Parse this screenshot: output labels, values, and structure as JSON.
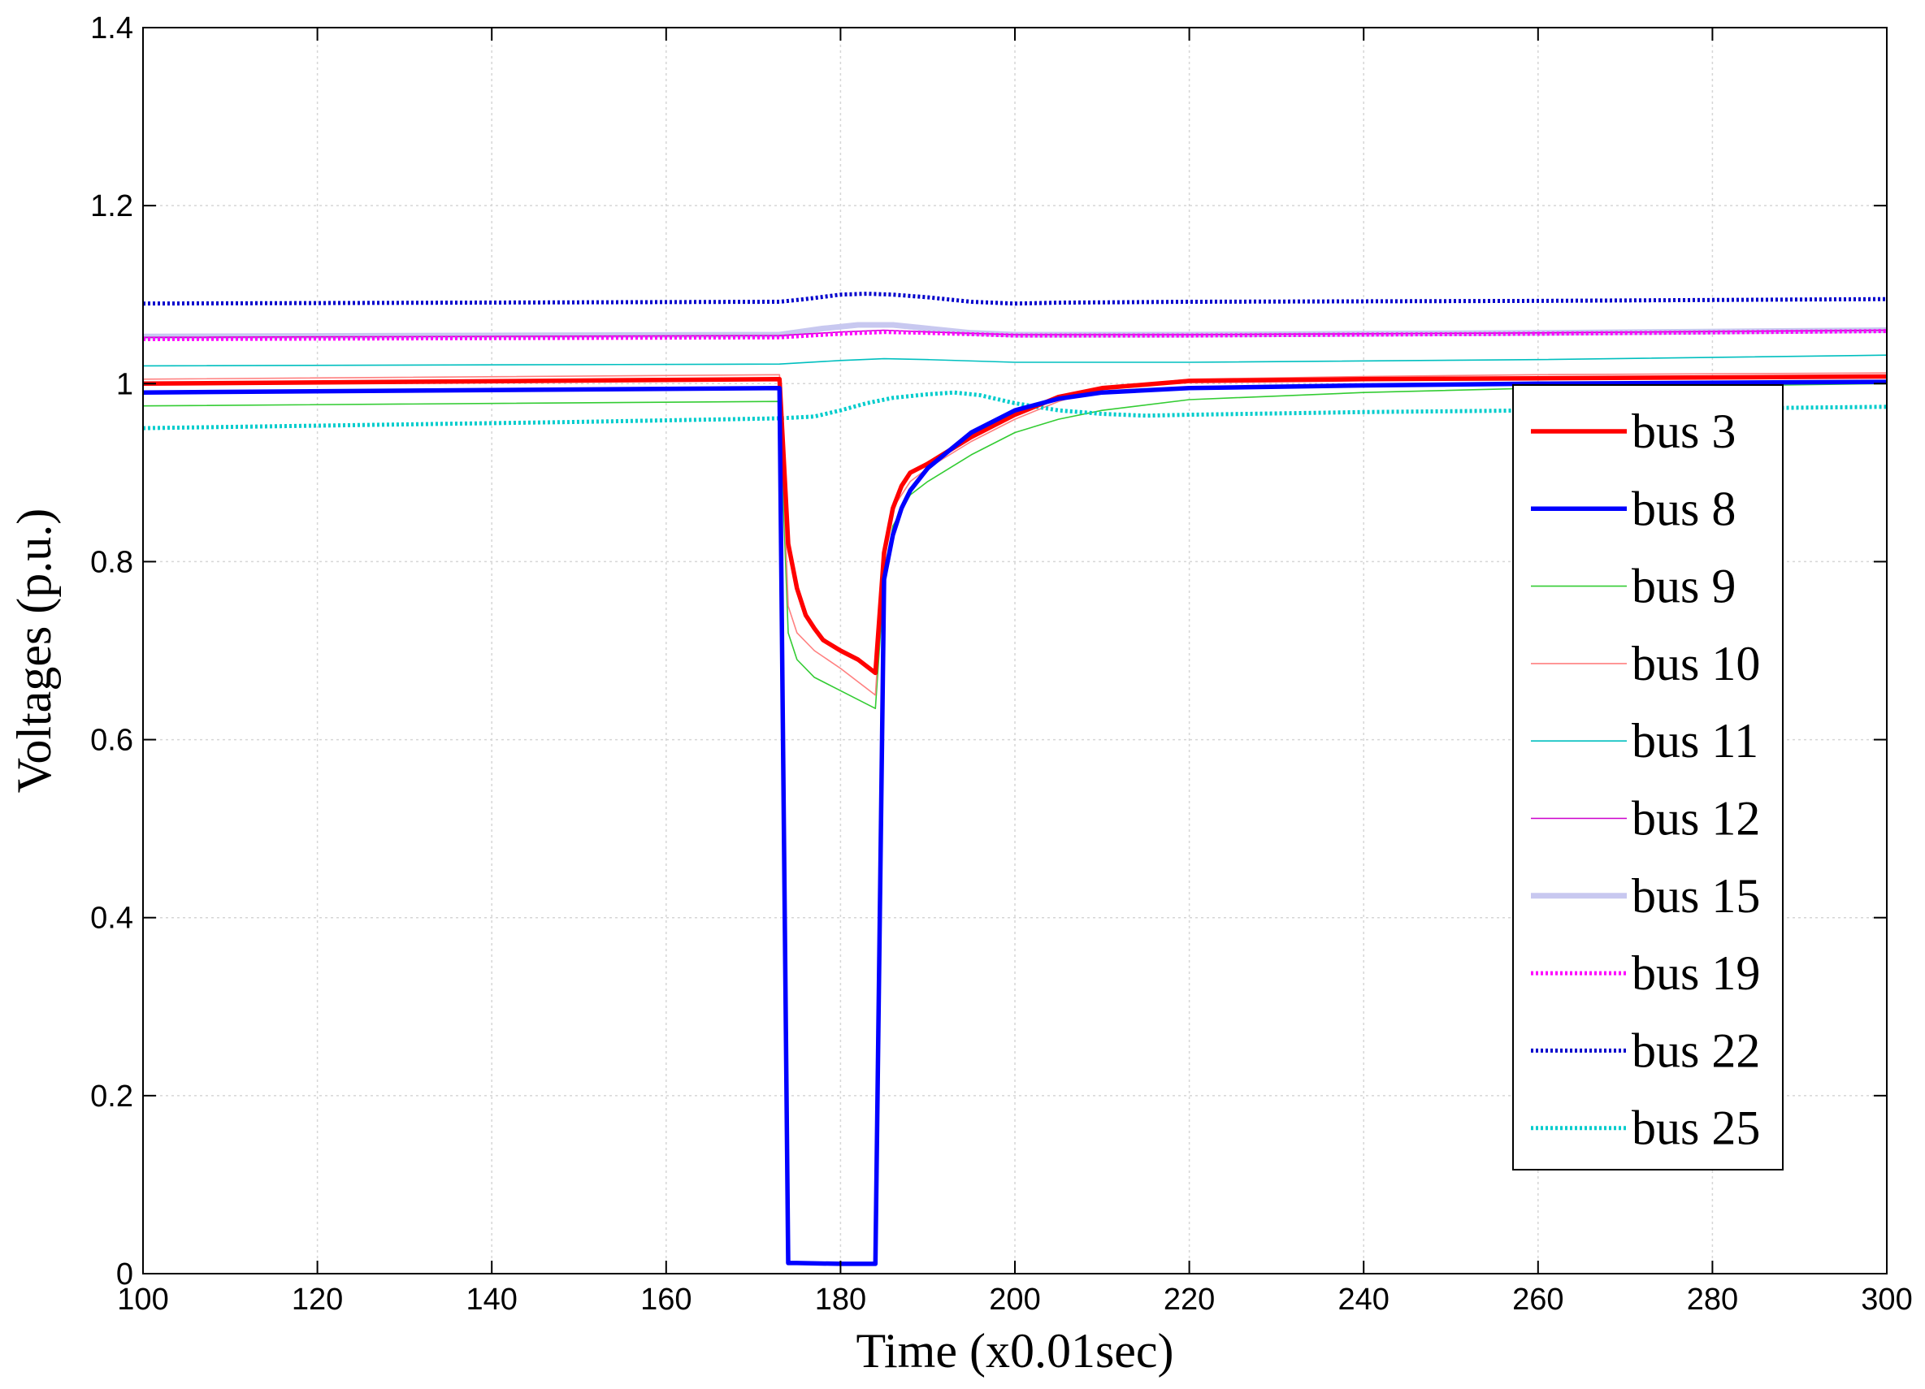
{
  "chart_data": {
    "type": "line",
    "xlabel": "Time (x0.01sec)",
    "ylabel": "Voltages (p.u.)",
    "xlim": [
      100,
      300
    ],
    "ylim": [
      0,
      1.4
    ],
    "xticks": [
      "100",
      "120",
      "140",
      "160",
      "180",
      "200",
      "220",
      "240",
      "260",
      "280",
      "300"
    ],
    "yticks": [
      "0",
      "0.2",
      "0.4",
      "0.6",
      "0.8",
      "1",
      "1.2",
      "1.4"
    ],
    "grid": true,
    "legend_position": "right-center",
    "series": [
      {
        "name": "bus 3",
        "color": "#ff0000",
        "style": "solid-thick",
        "x": [
          100,
          173,
          174,
          175,
          176,
          177,
          178,
          180,
          182,
          184,
          185,
          186,
          187,
          188,
          190,
          195,
          200,
          205,
          210,
          220,
          240,
          260,
          300
        ],
        "y": [
          1.0,
          1.005,
          0.82,
          0.77,
          0.74,
          0.725,
          0.712,
          0.7,
          0.69,
          0.675,
          0.81,
          0.86,
          0.885,
          0.9,
          0.91,
          0.94,
          0.965,
          0.985,
          0.995,
          1.003,
          1.005,
          1.006,
          1.008
        ]
      },
      {
        "name": "bus 8",
        "color": "#0000ff",
        "style": "solid-thick",
        "x": [
          100,
          173,
          174,
          175,
          180,
          184,
          185,
          186,
          187,
          188,
          190,
          195,
          200,
          205,
          210,
          220,
          240,
          260,
          300
        ],
        "y": [
          0.99,
          0.995,
          0.012,
          0.012,
          0.011,
          0.011,
          0.78,
          0.83,
          0.86,
          0.88,
          0.905,
          0.945,
          0.97,
          0.983,
          0.99,
          0.995,
          0.998,
          1.0,
          1.002
        ]
      },
      {
        "name": "bus 9",
        "color": "#33cc33",
        "style": "solid-thin",
        "x": [
          100,
          173,
          174,
          175,
          177,
          180,
          184,
          185,
          186,
          188,
          190,
          195,
          200,
          205,
          210,
          220,
          240,
          260,
          300
        ],
        "y": [
          0.975,
          0.98,
          0.72,
          0.69,
          0.67,
          0.655,
          0.635,
          0.78,
          0.84,
          0.875,
          0.89,
          0.92,
          0.945,
          0.96,
          0.97,
          0.982,
          0.99,
          0.995,
          1.0
        ]
      },
      {
        "name": "bus 10",
        "color": "#ff8080",
        "style": "solid-thin",
        "x": [
          100,
          173,
          174,
          175,
          177,
          180,
          184,
          185,
          186,
          188,
          190,
          195,
          200,
          205,
          210,
          220,
          240,
          260,
          300
        ],
        "y": [
          1.005,
          1.01,
          0.75,
          0.72,
          0.7,
          0.68,
          0.65,
          0.8,
          0.86,
          0.89,
          0.905,
          0.935,
          0.96,
          0.98,
          0.995,
          1.005,
          1.008,
          1.01,
          1.012
        ]
      },
      {
        "name": "bus 11",
        "color": "#00bfbf",
        "style": "solid-thin",
        "x": [
          100,
          173,
          180,
          185,
          190,
          200,
          220,
          260,
          300
        ],
        "y": [
          1.02,
          1.022,
          1.026,
          1.028,
          1.027,
          1.024,
          1.024,
          1.027,
          1.032
        ]
      },
      {
        "name": "bus 12",
        "color": "#cc00cc",
        "style": "solid-thin",
        "x": [
          100,
          173,
          180,
          185,
          190,
          200,
          220,
          260,
          300
        ],
        "y": [
          1.052,
          1.054,
          1.058,
          1.06,
          1.058,
          1.055,
          1.055,
          1.057,
          1.06
        ]
      },
      {
        "name": "bus 15",
        "color": "#c8c8f0",
        "style": "solid-thick-light",
        "x": [
          100,
          173,
          178,
          182,
          186,
          190,
          195,
          200,
          220,
          260,
          300
        ],
        "y": [
          1.053,
          1.055,
          1.062,
          1.066,
          1.066,
          1.062,
          1.057,
          1.055,
          1.055,
          1.057,
          1.06
        ]
      },
      {
        "name": "bus 19",
        "color": "#ff00ff",
        "style": "dotted",
        "x": [
          100,
          173,
          180,
          185,
          190,
          200,
          220,
          260,
          300
        ],
        "y": [
          1.05,
          1.052,
          1.056,
          1.058,
          1.057,
          1.054,
          1.054,
          1.056,
          1.059
        ]
      },
      {
        "name": "bus 22",
        "color": "#0000cc",
        "style": "dotted",
        "x": [
          100,
          173,
          176,
          180,
          183,
          186,
          190,
          195,
          200,
          205,
          220,
          260,
          300
        ],
        "y": [
          1.09,
          1.092,
          1.095,
          1.1,
          1.101,
          1.1,
          1.097,
          1.092,
          1.09,
          1.091,
          1.092,
          1.093,
          1.095
        ]
      },
      {
        "name": "bus 25",
        "color": "#00cccc",
        "style": "dotted",
        "x": [
          100,
          150,
          173,
          177,
          180,
          183,
          186,
          190,
          193,
          196,
          200,
          205,
          210,
          215,
          220,
          240,
          260,
          280,
          300
        ],
        "y": [
          0.95,
          0.957,
          0.961,
          0.963,
          0.97,
          0.978,
          0.984,
          0.988,
          0.99,
          0.987,
          0.978,
          0.97,
          0.966,
          0.964,
          0.965,
          0.968,
          0.97,
          0.972,
          0.974
        ]
      }
    ]
  }
}
